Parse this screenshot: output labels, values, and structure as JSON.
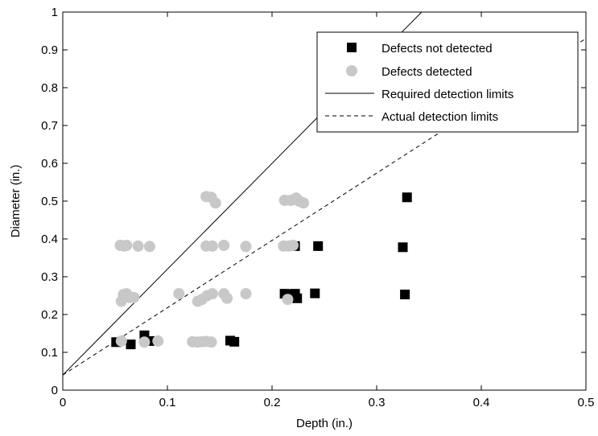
{
  "chart_data": {
    "type": "scatter",
    "xlabel": "Depth (in.)",
    "ylabel": "Diameter (in.)",
    "xlim": [
      0,
      0.5
    ],
    "ylim": [
      0,
      1
    ],
    "xticks": [
      "0",
      "0.1",
      "0.2",
      "0.3",
      "0.4",
      "0.5"
    ],
    "yticks": [
      "0",
      "0.1",
      "0.2",
      "0.3",
      "0.4",
      "0.5",
      "0.6",
      "0.7",
      "0.8",
      "0.9",
      "1"
    ],
    "legend_position": "top-right",
    "grid": false,
    "series": [
      {
        "name": "Defects not detected",
        "kind": "points",
        "marker": "square",
        "color": "#000000",
        "points": [
          [
            0.051,
            0.127
          ],
          [
            0.065,
            0.121
          ],
          [
            0.078,
            0.145
          ],
          [
            0.083,
            0.13
          ],
          [
            0.16,
            0.131
          ],
          [
            0.164,
            0.128
          ],
          [
            0.212,
            0.255
          ],
          [
            0.217,
            0.254
          ],
          [
            0.222,
            0.255
          ],
          [
            0.224,
            0.243
          ],
          [
            0.222,
            0.381
          ],
          [
            0.244,
            0.381
          ],
          [
            0.241,
            0.256
          ],
          [
            0.325,
            0.378
          ],
          [
            0.327,
            0.253
          ],
          [
            0.329,
            0.51
          ]
        ]
      },
      {
        "name": "Defects detected",
        "kind": "points",
        "marker": "circle",
        "color": "#c8c8c8",
        "points": [
          [
            0.056,
            0.13
          ],
          [
            0.078,
            0.127
          ],
          [
            0.091,
            0.13
          ],
          [
            0.124,
            0.128
          ],
          [
            0.129,
            0.127
          ],
          [
            0.133,
            0.128
          ],
          [
            0.137,
            0.129
          ],
          [
            0.142,
            0.127
          ],
          [
            0.056,
            0.235
          ],
          [
            0.058,
            0.253
          ],
          [
            0.061,
            0.255
          ],
          [
            0.064,
            0.245
          ],
          [
            0.068,
            0.245
          ],
          [
            0.111,
            0.255
          ],
          [
            0.129,
            0.235
          ],
          [
            0.133,
            0.24
          ],
          [
            0.138,
            0.25
          ],
          [
            0.143,
            0.255
          ],
          [
            0.154,
            0.255
          ],
          [
            0.157,
            0.243
          ],
          [
            0.175,
            0.255
          ],
          [
            0.215,
            0.24
          ],
          [
            0.055,
            0.383
          ],
          [
            0.059,
            0.381
          ],
          [
            0.061,
            0.383
          ],
          [
            0.072,
            0.381
          ],
          [
            0.083,
            0.38
          ],
          [
            0.137,
            0.381
          ],
          [
            0.143,
            0.381
          ],
          [
            0.154,
            0.383
          ],
          [
            0.175,
            0.38
          ],
          [
            0.211,
            0.381
          ],
          [
            0.216,
            0.381
          ],
          [
            0.22,
            0.383
          ],
          [
            0.137,
            0.512
          ],
          [
            0.142,
            0.51
          ],
          [
            0.146,
            0.495
          ],
          [
            0.212,
            0.502
          ],
          [
            0.218,
            0.502
          ],
          [
            0.223,
            0.508
          ],
          [
            0.226,
            0.5
          ],
          [
            0.23,
            0.495
          ]
        ]
      },
      {
        "name": "Required detection limits",
        "kind": "line",
        "dash": "solid",
        "color": "#000000",
        "points": [
          [
            0,
            0.04
          ],
          [
            0.343,
            1.0
          ]
        ]
      },
      {
        "name": "Actual detection limits",
        "kind": "line",
        "dash": "dashed",
        "color": "#000000",
        "points": [
          [
            0,
            0.04
          ],
          [
            0.5,
            0.93
          ]
        ]
      }
    ]
  }
}
